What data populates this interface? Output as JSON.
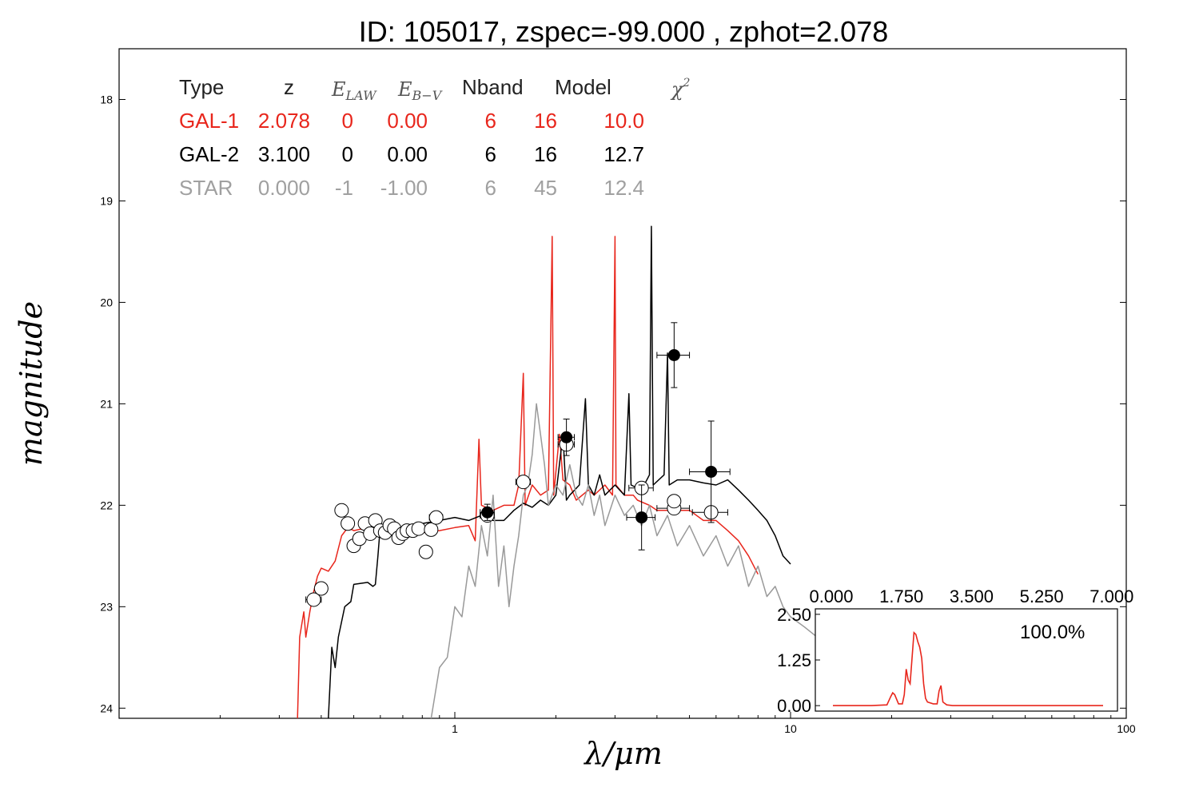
{
  "chart_data": {
    "type": "line",
    "title": "ID:  105017, zspec=-99.000 , zphot=2.078",
    "xlabel": "λ/μm",
    "ylabel": "magnitude",
    "xscale": "log",
    "xlim": [
      0.1,
      100
    ],
    "ylim": [
      24.1,
      17.5
    ],
    "x_ticks": [
      "1",
      "10",
      "100"
    ],
    "y_ticks": [
      "18",
      "19",
      "20",
      "21",
      "22",
      "23",
      "24"
    ],
    "table": {
      "headers": [
        "Type",
        "z",
        "E_LAW",
        "E_B-V",
        "Nband",
        "Model",
        "χ²"
      ],
      "rows": [
        {
          "type": "GAL-1",
          "z": "2.078",
          "elaw": "0",
          "ebv": "0.00",
          "nband": "6",
          "model": "16",
          "chi2": "10.0",
          "color": "#e8261c"
        },
        {
          "type": "GAL-2",
          "z": "3.100",
          "elaw": "0",
          "ebv": "0.00",
          "nband": "6",
          "model": "16",
          "chi2": "12.7",
          "color": "#000000"
        },
        {
          "type": "STAR",
          "z": "0.000",
          "elaw": "-1",
          "ebv": "-1.00",
          "nband": "6",
          "model": "45",
          "chi2": "12.4",
          "color": "#a0a0a0"
        }
      ]
    },
    "series": [
      {
        "color": "#e8261c",
        "points": [
          [
            0.34,
            24.1
          ],
          [
            0.345,
            23.3
          ],
          [
            0.355,
            23.05
          ],
          [
            0.36,
            23.3
          ],
          [
            0.37,
            23.05
          ],
          [
            0.38,
            22.85
          ],
          [
            0.39,
            22.7
          ],
          [
            0.4,
            22.62
          ],
          [
            0.42,
            22.65
          ],
          [
            0.44,
            22.55
          ],
          [
            0.46,
            22.3
          ],
          [
            0.48,
            22.22
          ],
          [
            0.5,
            22.25
          ],
          [
            0.55,
            22.22
          ],
          [
            0.6,
            22.25
          ],
          [
            0.7,
            22.28
          ],
          [
            0.8,
            22.27
          ],
          [
            0.9,
            22.25
          ],
          [
            1.0,
            22.22
          ],
          [
            1.1,
            22.2
          ],
          [
            1.15,
            22.35
          ],
          [
            1.18,
            21.35
          ],
          [
            1.2,
            22.0
          ],
          [
            1.3,
            22.05
          ],
          [
            1.4,
            22.0
          ],
          [
            1.5,
            22.0
          ],
          [
            1.55,
            21.8
          ],
          [
            1.6,
            20.7
          ],
          [
            1.62,
            22.0
          ],
          [
            1.7,
            21.8
          ],
          [
            1.8,
            21.9
          ],
          [
            1.9,
            21.85
          ],
          [
            1.95,
            19.35
          ],
          [
            1.97,
            21.9
          ],
          [
            2.05,
            21.3
          ],
          [
            2.1,
            21.75
          ],
          [
            2.2,
            21.8
          ],
          [
            2.3,
            21.95
          ],
          [
            2.5,
            21.85
          ],
          [
            2.6,
            21.9
          ],
          [
            2.8,
            21.8
          ],
          [
            2.95,
            21.9
          ],
          [
            3.0,
            19.35
          ],
          [
            3.02,
            21.8
          ],
          [
            3.2,
            21.9
          ],
          [
            3.4,
            21.9
          ],
          [
            3.5,
            21.95
          ],
          [
            3.8,
            22.0
          ],
          [
            4.0,
            22.05
          ],
          [
            4.5,
            22.05
          ],
          [
            5.0,
            22.05
          ],
          [
            5.5,
            22.15
          ],
          [
            6.0,
            22.15
          ],
          [
            6.5,
            22.25
          ],
          [
            7.0,
            22.35
          ],
          [
            7.5,
            22.5
          ],
          [
            8.0,
            22.68
          ]
        ]
      },
      {
        "color": "#000000",
        "points": [
          [
            0.42,
            24.1
          ],
          [
            0.43,
            23.4
          ],
          [
            0.44,
            23.6
          ],
          [
            0.45,
            23.3
          ],
          [
            0.47,
            23.0
          ],
          [
            0.49,
            22.95
          ],
          [
            0.5,
            22.78
          ],
          [
            0.55,
            22.76
          ],
          [
            0.57,
            22.8
          ],
          [
            0.58,
            22.78
          ],
          [
            0.59,
            22.5
          ],
          [
            0.6,
            22.2
          ],
          [
            0.65,
            22.25
          ],
          [
            0.7,
            22.22
          ],
          [
            0.8,
            22.18
          ],
          [
            0.9,
            22.15
          ],
          [
            1.0,
            22.12
          ],
          [
            1.1,
            22.15
          ],
          [
            1.2,
            22.1
          ],
          [
            1.3,
            22.15
          ],
          [
            1.4,
            22.15
          ],
          [
            1.5,
            22.05
          ],
          [
            1.6,
            21.98
          ],
          [
            1.7,
            22.02
          ],
          [
            1.8,
            21.95
          ],
          [
            1.9,
            22.0
          ],
          [
            2.0,
            21.9
          ],
          [
            2.1,
            21.3
          ],
          [
            2.15,
            21.95
          ],
          [
            2.2,
            21.9
          ],
          [
            2.35,
            21.8
          ],
          [
            2.45,
            20.95
          ],
          [
            2.5,
            21.8
          ],
          [
            2.6,
            21.9
          ],
          [
            2.7,
            21.7
          ],
          [
            2.8,
            21.9
          ],
          [
            3.0,
            21.8
          ],
          [
            3.2,
            21.9
          ],
          [
            3.3,
            20.9
          ],
          [
            3.35,
            21.8
          ],
          [
            3.6,
            21.85
          ],
          [
            3.8,
            21.7
          ],
          [
            3.85,
            19.25
          ],
          [
            3.9,
            21.8
          ],
          [
            4.2,
            21.7
          ],
          [
            4.3,
            20.5
          ],
          [
            4.35,
            21.8
          ],
          [
            4.6,
            21.75
          ],
          [
            5.0,
            21.75
          ],
          [
            5.5,
            21.78
          ],
          [
            6.0,
            21.8
          ],
          [
            6.5,
            21.75
          ],
          [
            7.0,
            21.85
          ],
          [
            7.5,
            21.95
          ],
          [
            8.0,
            22.05
          ],
          [
            8.5,
            22.15
          ],
          [
            9.0,
            22.3
          ],
          [
            9.5,
            22.5
          ],
          [
            10.0,
            22.58
          ]
        ]
      },
      {
        "color": "#999999",
        "points": [
          [
            0.85,
            24.1
          ],
          [
            0.9,
            23.6
          ],
          [
            0.95,
            23.5
          ],
          [
            1.0,
            23.0
          ],
          [
            1.05,
            23.1
          ],
          [
            1.1,
            22.6
          ],
          [
            1.15,
            22.8
          ],
          [
            1.2,
            22.2
          ],
          [
            1.25,
            22.5
          ],
          [
            1.3,
            21.9
          ],
          [
            1.35,
            22.8
          ],
          [
            1.4,
            22.4
          ],
          [
            1.45,
            23.0
          ],
          [
            1.5,
            22.6
          ],
          [
            1.55,
            22.3
          ],
          [
            1.6,
            21.9
          ],
          [
            1.65,
            21.8
          ],
          [
            1.7,
            21.5
          ],
          [
            1.75,
            21.0
          ],
          [
            1.8,
            21.3
          ],
          [
            1.85,
            21.6
          ],
          [
            1.9,
            22.0
          ],
          [
            2.0,
            21.8
          ],
          [
            2.1,
            21.9
          ],
          [
            2.2,
            21.6
          ],
          [
            2.3,
            21.9
          ],
          [
            2.4,
            22.0
          ],
          [
            2.5,
            21.8
          ],
          [
            2.6,
            22.1
          ],
          [
            2.7,
            21.9
          ],
          [
            2.8,
            22.2
          ],
          [
            3.0,
            21.9
          ],
          [
            3.2,
            22.1
          ],
          [
            3.4,
            22.0
          ],
          [
            3.6,
            22.2
          ],
          [
            3.8,
            22.0
          ],
          [
            4.0,
            22.3
          ],
          [
            4.3,
            22.1
          ],
          [
            4.6,
            22.4
          ],
          [
            5.0,
            22.2
          ],
          [
            5.5,
            22.5
          ],
          [
            6.0,
            22.3
          ],
          [
            6.5,
            22.6
          ],
          [
            7.0,
            22.4
          ],
          [
            7.5,
            22.8
          ],
          [
            8.0,
            22.6
          ],
          [
            8.5,
            22.9
          ],
          [
            9.0,
            22.8
          ],
          [
            9.5,
            23.0
          ],
          [
            10.0,
            23.1
          ],
          [
            11.0,
            23.2
          ],
          [
            12.0,
            23.3
          ]
        ]
      }
    ],
    "observed_points": [
      {
        "x": 1.25,
        "y": 22.07,
        "xerr": 0.06,
        "yerr": 0.08
      },
      {
        "x": 2.15,
        "y": 21.33,
        "xerr": 0.12,
        "yerr": 0.18
      },
      {
        "x": 3.6,
        "y": 22.12,
        "xerr": 0.35,
        "yerr": 0.32
      },
      {
        "x": 4.5,
        "y": 20.52,
        "xerr": 0.5,
        "yerr": 0.32
      },
      {
        "x": 5.8,
        "y": 21.67,
        "xerr": 0.8,
        "yerr": 0.5
      }
    ],
    "model_points": [
      {
        "x": 0.38,
        "y": 22.93,
        "xerr": 0.02
      },
      {
        "x": 0.4,
        "y": 22.82
      },
      {
        "x": 0.46,
        "y": 22.05
      },
      {
        "x": 0.48,
        "y": 22.18
      },
      {
        "x": 0.5,
        "y": 22.4
      },
      {
        "x": 0.52,
        "y": 22.33
      },
      {
        "x": 0.54,
        "y": 22.18
      },
      {
        "x": 0.56,
        "y": 22.28
      },
      {
        "x": 0.58,
        "y": 22.15
      },
      {
        "x": 0.6,
        "y": 22.25
      },
      {
        "x": 0.62,
        "y": 22.27
      },
      {
        "x": 0.64,
        "y": 22.2
      },
      {
        "x": 0.66,
        "y": 22.23
      },
      {
        "x": 0.68,
        "y": 22.32
      },
      {
        "x": 0.7,
        "y": 22.28
      },
      {
        "x": 0.72,
        "y": 22.25
      },
      {
        "x": 0.75,
        "y": 22.25
      },
      {
        "x": 0.78,
        "y": 22.23
      },
      {
        "x": 0.82,
        "y": 22.46
      },
      {
        "x": 0.85,
        "y": 22.24,
        "xerr": 0.03
      },
      {
        "x": 0.88,
        "y": 22.12,
        "xerr": 0.04
      },
      {
        "x": 1.25,
        "y": 22.1,
        "xerr": 0.06
      },
      {
        "x": 1.6,
        "y": 21.77,
        "xerr": 0.08
      },
      {
        "x": 2.15,
        "y": 21.4,
        "xerr": 0.12
      },
      {
        "x": 3.6,
        "y": 21.83,
        "xerr": 0.3
      },
      {
        "x": 4.5,
        "y": 22.03,
        "xerr": 0.5
      },
      {
        "x": 4.5,
        "y": 21.96
      },
      {
        "x": 5.8,
        "y": 22.07,
        "xerr": 0.7
      }
    ],
    "inset": {
      "x_ticks": [
        "0.000",
        "1.750",
        "3.500",
        "5.250",
        "7.000"
      ],
      "y_ticks": [
        "0.00",
        "1.25",
        "2.50"
      ],
      "xlim": [
        0.0,
        7.0
      ],
      "ylim": [
        -0.15,
        2.65
      ],
      "percent": "100.0%",
      "color": "#e8261c",
      "points": [
        [
          0.0,
          0.0
        ],
        [
          1.0,
          0.0
        ],
        [
          1.4,
          0.02
        ],
        [
          1.5,
          0.25
        ],
        [
          1.55,
          0.35
        ],
        [
          1.6,
          0.3
        ],
        [
          1.7,
          0.05
        ],
        [
          1.8,
          0.05
        ],
        [
          1.85,
          0.3
        ],
        [
          1.9,
          1.0
        ],
        [
          1.95,
          0.7
        ],
        [
          2.0,
          0.6
        ],
        [
          2.05,
          1.3
        ],
        [
          2.1,
          2.0
        ],
        [
          2.15,
          1.95
        ],
        [
          2.2,
          1.75
        ],
        [
          2.25,
          1.6
        ],
        [
          2.3,
          1.3
        ],
        [
          2.35,
          0.6
        ],
        [
          2.4,
          0.2
        ],
        [
          2.45,
          0.1
        ],
        [
          2.6,
          0.05
        ],
        [
          2.7,
          0.05
        ],
        [
          2.75,
          0.4
        ],
        [
          2.8,
          0.55
        ],
        [
          2.85,
          0.1
        ],
        [
          2.95,
          0.02
        ],
        [
          3.1,
          0.0
        ],
        [
          5.0,
          0.0
        ],
        [
          7.0,
          0.0
        ]
      ]
    }
  }
}
